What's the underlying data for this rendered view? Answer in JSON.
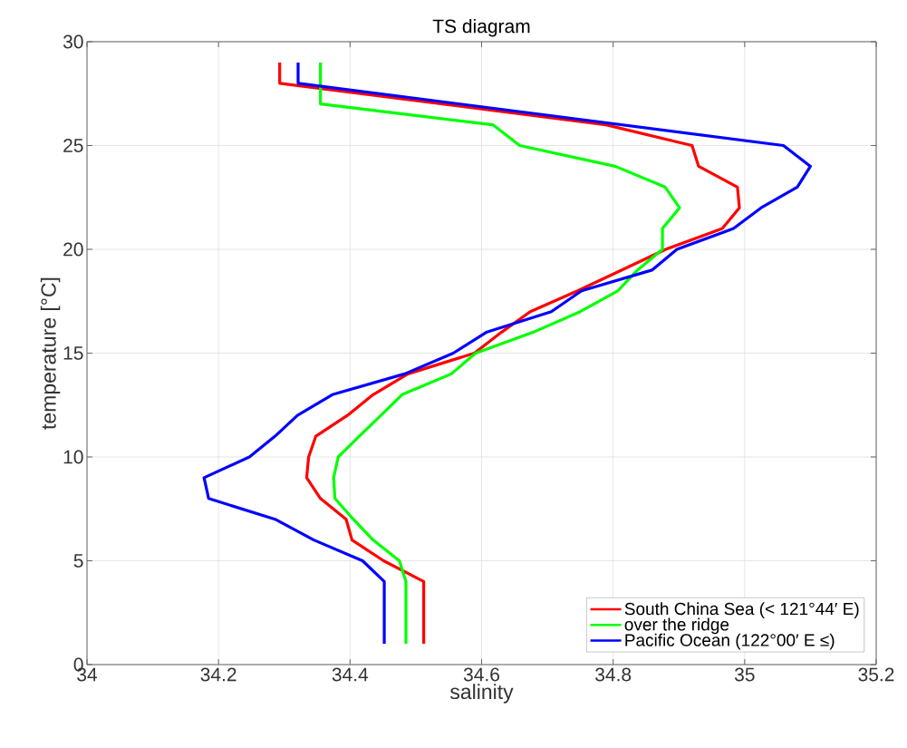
{
  "chart_data": {
    "type": "line",
    "title": "TS diagram",
    "xlabel": "salinity",
    "ylabel": "temperature [°C]",
    "xlim": [
      34,
      35.2
    ],
    "ylim": [
      0,
      30
    ],
    "xticks": [
      34,
      34.2,
      34.4,
      34.6,
      34.8,
      35,
      35.2
    ],
    "yticks": [
      0,
      5,
      10,
      15,
      20,
      25,
      30
    ],
    "grid": true,
    "legend": "bottom right",
    "marker": "none",
    "line_style": "solid",
    "series": [
      {
        "name": "South China Sea (< 121°44′ E)",
        "color": "#ff0000",
        "x": [
          34.512,
          34.512,
          34.451,
          34.403,
          34.394,
          34.355,
          34.334,
          34.337,
          34.348,
          34.396,
          34.435,
          34.488,
          34.589,
          34.63,
          34.674,
          34.746,
          34.88,
          34.966,
          34.992,
          34.989,
          34.93,
          34.92,
          34.789,
          34.293,
          34.293
        ],
        "values": [
          1,
          4,
          5,
          6,
          7,
          8,
          9,
          10,
          11,
          12,
          13,
          14,
          15,
          16,
          17,
          18,
          20,
          21,
          22,
          23,
          24,
          25,
          26,
          28,
          29
        ]
      },
      {
        "name": "over the ridge",
        "color": "#00ff00",
        "x": [
          34.485,
          34.485,
          34.475,
          34.435,
          34.405,
          34.377,
          34.375,
          34.382,
          34.414,
          34.447,
          34.479,
          34.554,
          34.591,
          34.678,
          34.75,
          34.807,
          34.837,
          34.875,
          34.875,
          34.901,
          34.879,
          34.803,
          34.658,
          34.617,
          34.355,
          34.355
        ],
        "values": [
          1,
          4,
          5,
          6,
          7,
          8,
          9,
          10,
          11,
          12,
          13,
          14,
          15,
          16,
          17,
          18,
          19,
          20,
          21,
          22,
          23,
          24,
          25,
          26,
          27,
          29
        ]
      },
      {
        "name": "Pacific Ocean (122°00′ E ≤)",
        "color": "#0000ff",
        "x": [
          34.452,
          34.452,
          34.419,
          34.345,
          34.286,
          34.185,
          34.178,
          34.247,
          34.286,
          34.32,
          34.373,
          34.483,
          34.557,
          34.607,
          34.706,
          34.752,
          34.859,
          34.897,
          34.983,
          35.025,
          35.08,
          35.1,
          35.059,
          34.321,
          34.321
        ],
        "values": [
          1,
          4,
          5,
          6,
          7,
          8,
          9,
          10,
          11,
          12,
          13,
          14,
          15,
          16,
          17,
          18,
          19,
          20,
          21,
          22,
          23,
          24,
          25,
          28,
          29
        ]
      }
    ]
  }
}
